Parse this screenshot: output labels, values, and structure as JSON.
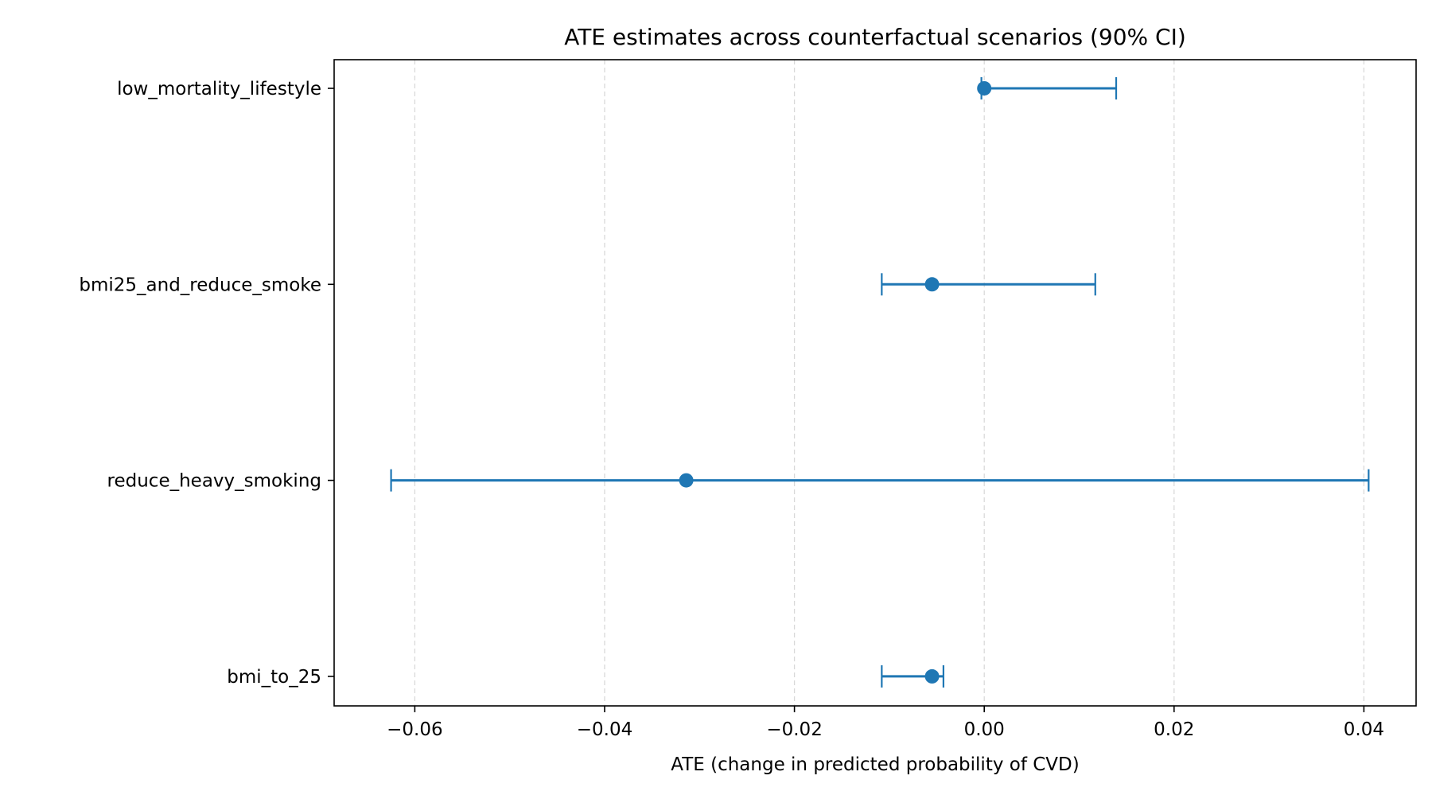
{
  "chart_data": {
    "type": "scatter",
    "title": "ATE estimates across counterfactual scenarios (90% CI)",
    "xlabel": "ATE (change in predicted probability of CVD)",
    "ylabel": "",
    "xlim": [
      -0.0685,
      0.0455
    ],
    "xticks": [
      -0.06,
      -0.04,
      -0.02,
      0.0,
      0.02,
      0.04
    ],
    "xtick_labels": [
      "−0.06",
      "−0.04",
      "−0.02",
      "0.00",
      "0.02",
      "0.04"
    ],
    "grid": "x-dashed",
    "categories": [
      "low_mortality_lifestyle",
      "bmi25_and_reduce_smoke",
      "reduce_heavy_smoking",
      "bmi_to_25"
    ],
    "series": [
      {
        "color": "#1f77b4",
        "points": [
          {
            "category": "low_mortality_lifestyle",
            "ate": 0.0,
            "ci_low": -0.0003,
            "ci_high": 0.0139
          },
          {
            "category": "bmi25_and_reduce_smoke",
            "ate": -0.0055,
            "ci_low": -0.0108,
            "ci_high": 0.0117
          },
          {
            "category": "reduce_heavy_smoking",
            "ate": -0.0314,
            "ci_low": -0.0625,
            "ci_high": 0.0405
          },
          {
            "category": "bmi_to_25",
            "ate": -0.0055,
            "ci_low": -0.0108,
            "ci_high": -0.0043
          }
        ]
      }
    ]
  }
}
